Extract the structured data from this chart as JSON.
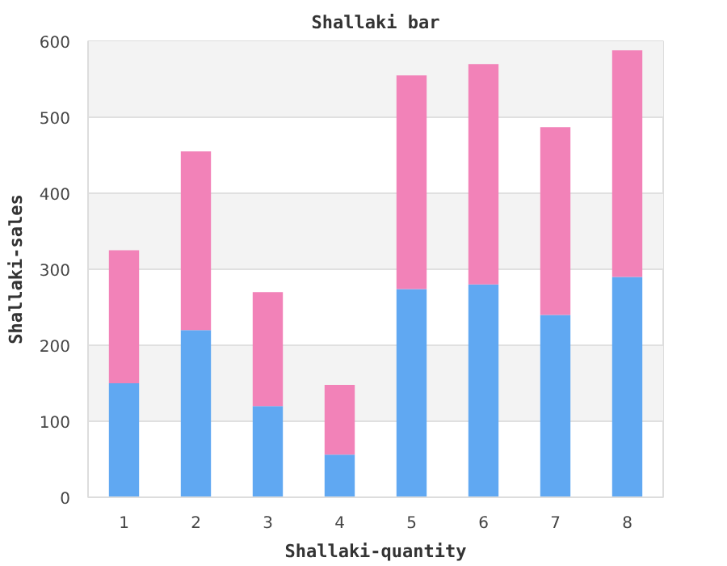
{
  "chart_data": {
    "type": "bar",
    "title": "Shallaki bar",
    "xlabel": "Shallaki-quantity",
    "ylabel": "Shallaki-sales",
    "categories": [
      "1",
      "2",
      "3",
      "4",
      "5",
      "6",
      "7",
      "8"
    ],
    "stacked": true,
    "series": [
      {
        "color": "#60a8f2",
        "values": [
          150,
          220,
          120,
          56,
          274,
          280,
          240,
          290
        ]
      },
      {
        "color": "#f282b8",
        "values": [
          175,
          235,
          150,
          92,
          281,
          290,
          247,
          298
        ]
      }
    ],
    "ylim": [
      0,
      600
    ],
    "yticks": [
      0,
      100,
      200,
      300,
      400,
      500,
      600
    ],
    "grid": "y"
  }
}
